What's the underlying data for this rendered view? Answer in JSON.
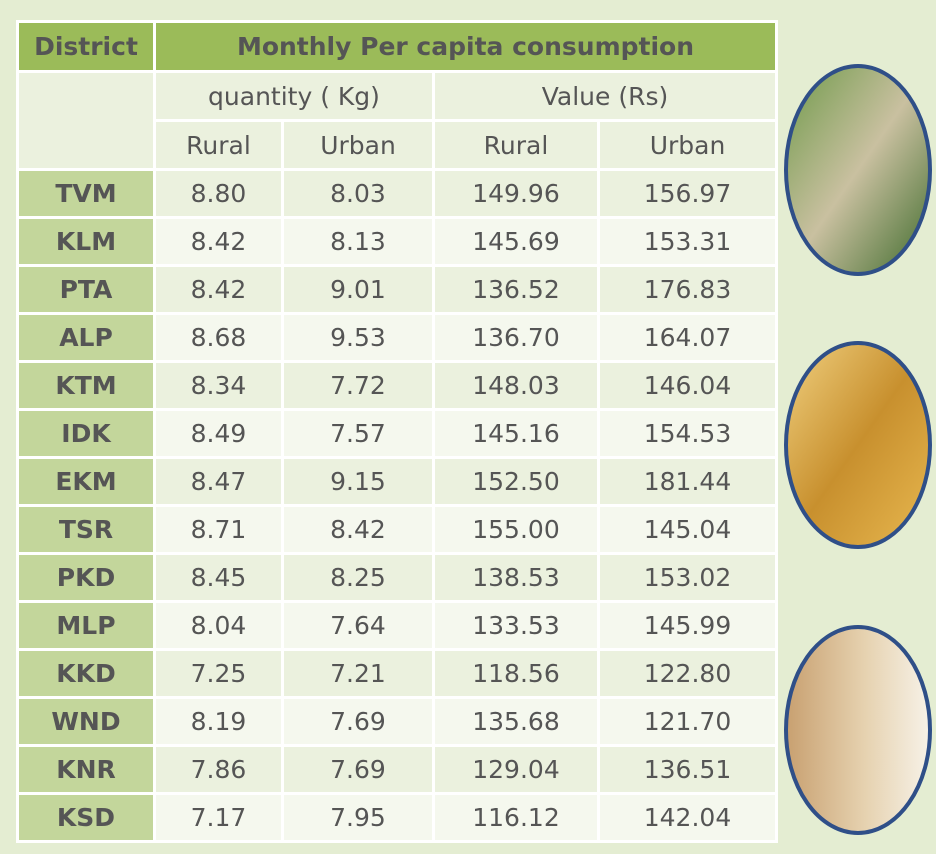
{
  "table": {
    "header": {
      "district": "District",
      "title": "Monthly Per capita consumption",
      "groups": [
        "quantity ( Kg)",
        "Value (Rs)"
      ],
      "subheaders": [
        "Rural",
        "Urban",
        "Rural",
        "Urban"
      ]
    },
    "rows": [
      [
        "TVM",
        "8.80",
        "8.03",
        "149.96",
        "156.97"
      ],
      [
        "KLM",
        "8.42",
        "8.13",
        "145.69",
        "153.31"
      ],
      [
        "PTA",
        "8.42",
        "9.01",
        "136.52",
        "176.83"
      ],
      [
        "ALP",
        "8.68",
        "9.53",
        "136.70",
        "164.07"
      ],
      [
        "KTM",
        "8.34",
        "7.72",
        "148.03",
        "146.04"
      ],
      [
        "IDK",
        "8.49",
        "7.57",
        "145.16",
        "154.53"
      ],
      [
        "EKM",
        "8.47",
        "9.15",
        "152.50",
        "181.44"
      ],
      [
        "TSR",
        "8.71",
        "8.42",
        "155.00",
        "145.04"
      ],
      [
        "PKD",
        "8.45",
        "8.25",
        "138.53",
        "153.02"
      ],
      [
        "MLP",
        "8.04",
        "7.64",
        "133.53",
        "145.99"
      ],
      [
        "KKD",
        "7.25",
        "7.21",
        "118.56",
        "122.80"
      ],
      [
        "WND",
        "8.19",
        "7.69",
        "135.68",
        "121.70"
      ],
      [
        "KNR",
        "7.86",
        "7.69",
        "129.04",
        "136.51"
      ],
      [
        "KSD",
        "7.17",
        "7.95",
        "116.12",
        "142.04"
      ]
    ]
  }
}
